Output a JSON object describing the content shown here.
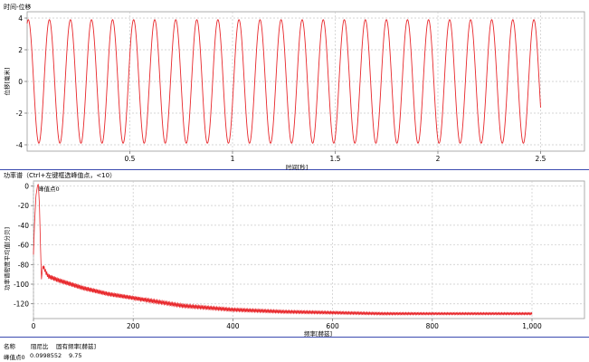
{
  "chart_data": [
    {
      "type": "line",
      "title": "时间-位移",
      "xlabel": "时间[秒]",
      "ylabel": "位移[毫米]",
      "xlim": [
        0,
        2.5
      ],
      "ylim": [
        -4.4,
        4.4
      ],
      "xticks": [
        0.5,
        1,
        1.5,
        2,
        2.5
      ],
      "yticks": [
        -4,
        -2,
        0,
        2,
        4
      ],
      "grid": true,
      "series": [
        {
          "amplitude": 3.9,
          "frequency_hz": 9.75,
          "color": "#e8262a"
        }
      ]
    },
    {
      "type": "line",
      "title": "功率谱（Ctrl+左键框选峰值点，<10）",
      "xlabel": "频率[赫兹]",
      "ylabel": "功率谱密度平均值[分贝]",
      "annotation": "峰值点0",
      "xlim": [
        0,
        1000
      ],
      "ylim": [
        -135,
        5
      ],
      "xticks": [
        0,
        200,
        400,
        600,
        800,
        1000
      ],
      "yticks": [
        0,
        -20,
        -40,
        -60,
        -80,
        -100,
        -120
      ],
      "xtick_labels": [
        "0",
        "200",
        "400",
        "600",
        "800",
        "1,000"
      ],
      "grid": true,
      "series": [
        {
          "color": "#e8262a",
          "x": [
            0,
            2,
            5,
            8,
            9.75,
            12,
            14,
            16,
            18,
            20,
            25,
            30,
            50,
            100,
            150,
            200,
            300,
            400,
            500,
            600,
            700,
            800,
            900,
            1000
          ],
          "y": [
            -70,
            -40,
            -10,
            0,
            2,
            -20,
            -60,
            -95,
            -85,
            -82,
            -88,
            -92,
            -96,
            -104,
            -110,
            -114,
            -122,
            -126,
            -128,
            -129,
            -130,
            -130,
            -130,
            -130
          ]
        }
      ]
    }
  ],
  "table": {
    "headers": [
      "名称",
      "阻尼比",
      "固有频率[赫兹]"
    ],
    "rows": [
      [
        "峰值点0",
        "0.0998552",
        "9.75"
      ]
    ]
  }
}
